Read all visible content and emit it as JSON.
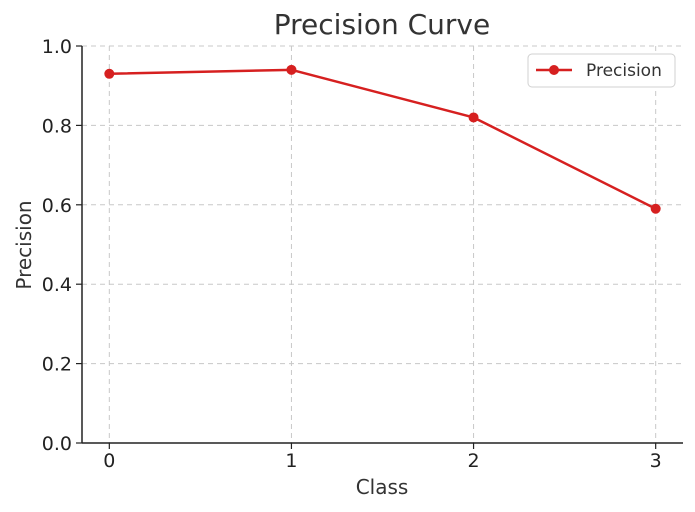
{
  "chart_data": {
    "type": "line",
    "title": "Precision Curve",
    "xlabel": "Class",
    "ylabel": "Precision",
    "x": [
      0,
      1,
      2,
      3
    ],
    "series": [
      {
        "name": "Precision",
        "values": [
          0.93,
          0.94,
          0.82,
          0.59
        ],
        "color": "#d62020",
        "marker": "circle"
      }
    ],
    "xlim": [
      -0.15,
      3.15
    ],
    "ylim": [
      0.0,
      1.0
    ],
    "xticks": [
      "0",
      "1",
      "2",
      "3"
    ],
    "yticks": [
      "0.0",
      "0.2",
      "0.4",
      "0.6",
      "0.8",
      "1.0"
    ],
    "grid": true,
    "legend": "top-right"
  }
}
